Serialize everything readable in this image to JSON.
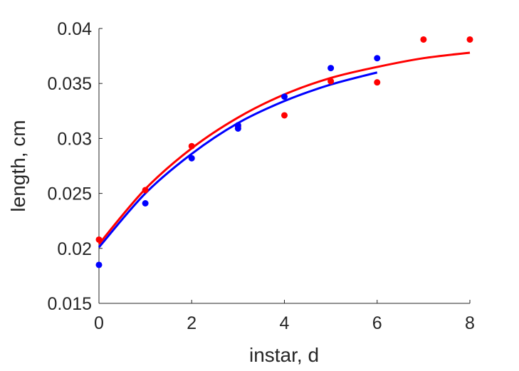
{
  "chart_data": {
    "type": "scatter",
    "xlabel": "instar, d",
    "ylabel": "length, cm",
    "xlim": [
      0,
      8
    ],
    "ylim": [
      0.015,
      0.04
    ],
    "xticks": [
      0,
      2,
      4,
      6,
      8
    ],
    "xtick_labels": [
      "0",
      "2",
      "4",
      "6",
      "8"
    ],
    "yticks": [
      0.015,
      0.02,
      0.025,
      0.03,
      0.035,
      0.04
    ],
    "ytick_labels": [
      "0.015",
      "0.02",
      "0.025",
      "0.03",
      "0.035",
      "0.04"
    ],
    "grid": false,
    "series": [
      {
        "color": "#ff0000",
        "points": {
          "x": [
            0,
            1,
            2,
            3,
            4,
            5,
            6,
            7,
            8
          ],
          "y": [
            0.0208,
            0.0253,
            0.0293,
            0.0311,
            0.0321,
            0.0352,
            0.0351,
            0.039,
            0.039
          ]
        },
        "fit": {
          "x": [
            0,
            1,
            2,
            3,
            4,
            5,
            6,
            7,
            8
          ],
          "y": [
            0.0204,
            0.0254,
            0.0291,
            0.0319,
            0.034,
            0.0355,
            0.0365,
            0.0373,
            0.0378
          ]
        }
      },
      {
        "color": "#0000ff",
        "points": {
          "x": [
            0,
            1,
            2,
            3,
            3,
            4,
            5,
            6
          ],
          "y": [
            0.0185,
            0.0241,
            0.0282,
            0.0309,
            0.0312,
            0.0338,
            0.0364,
            0.0373
          ]
        },
        "fit": {
          "x": [
            0,
            1,
            2,
            3,
            4,
            5,
            6
          ],
          "y": [
            0.0201,
            0.025,
            0.0286,
            0.0314,
            0.0334,
            0.0349,
            0.036
          ]
        }
      }
    ]
  }
}
